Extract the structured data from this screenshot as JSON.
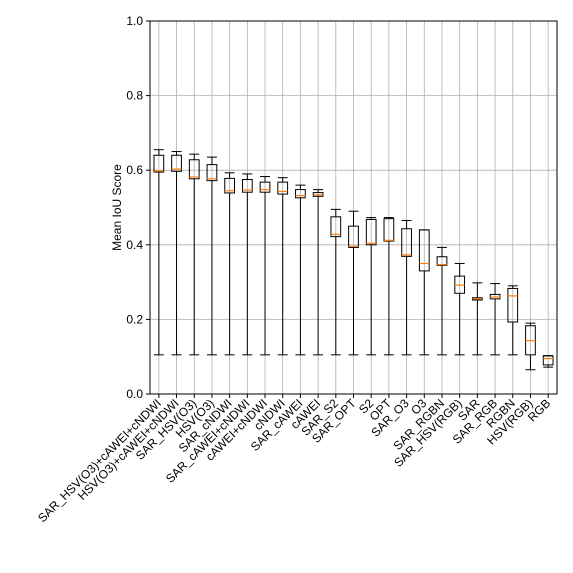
{
  "chart_data": {
    "type": "box",
    "title": "",
    "xlabel": "",
    "ylabel": "Mean IoU Score",
    "ylim": [
      0.0,
      1.0
    ],
    "yticks": [
      0.0,
      0.2,
      0.4,
      0.6,
      0.8,
      1.0
    ],
    "ytick_labels": [
      "0.0",
      "0.2",
      "0.4",
      "0.6",
      "0.8",
      "1.0"
    ],
    "grid": true,
    "colors": {
      "box": "#000000",
      "median": "#ff7f0e",
      "grid": "#b0b0b0"
    },
    "categories": [
      "SAR_HSV(O3)+cAWEI+cNDWI",
      "HSV(O3)+cAWEI+cNDWI",
      "SAR_HSV(O3)",
      "HSV(O3)",
      "SAR_cNDWI",
      "SAR_cAWEI+cNDWI",
      "cAWEI+cNDWI",
      "cNDWI",
      "SAR_cAWEI",
      "cAWEI",
      "SAR_S2",
      "SAR_OPT",
      "S2",
      "OPT",
      "SAR_O3",
      "O3",
      "SAR_RGBN",
      "SAR_HSV(RGB)",
      "SAR",
      "SAR_RGB",
      "RGBN",
      "HSV(RGB)",
      "RGB"
    ],
    "boxes": [
      {
        "whislo": 0.105,
        "q1": 0.595,
        "med": 0.598,
        "q3": 0.64,
        "whishi": 0.655
      },
      {
        "whislo": 0.105,
        "q1": 0.597,
        "med": 0.603,
        "q3": 0.64,
        "whishi": 0.65
      },
      {
        "whislo": 0.105,
        "q1": 0.577,
        "med": 0.582,
        "q3": 0.628,
        "whishi": 0.643
      },
      {
        "whislo": 0.105,
        "q1": 0.572,
        "med": 0.577,
        "q3": 0.615,
        "whishi": 0.635
      },
      {
        "whislo": 0.105,
        "q1": 0.539,
        "med": 0.545,
        "q3": 0.578,
        "whishi": 0.593
      },
      {
        "whislo": 0.105,
        "q1": 0.541,
        "med": 0.547,
        "q3": 0.575,
        "whishi": 0.59
      },
      {
        "whislo": 0.105,
        "q1": 0.541,
        "med": 0.548,
        "q3": 0.568,
        "whishi": 0.583
      },
      {
        "whislo": 0.105,
        "q1": 0.536,
        "med": 0.543,
        "q3": 0.568,
        "whishi": 0.58
      },
      {
        "whislo": 0.105,
        "q1": 0.526,
        "med": 0.532,
        "q3": 0.548,
        "whishi": 0.56
      },
      {
        "whislo": 0.105,
        "q1": 0.53,
        "med": 0.534,
        "q3": 0.54,
        "whishi": 0.548
      },
      {
        "whislo": 0.105,
        "q1": 0.422,
        "med": 0.428,
        "q3": 0.475,
        "whishi": 0.495
      },
      {
        "whislo": 0.105,
        "q1": 0.393,
        "med": 0.396,
        "q3": 0.45,
        "whishi": 0.49
      },
      {
        "whislo": 0.105,
        "q1": 0.4,
        "med": 0.404,
        "q3": 0.468,
        "whishi": 0.473
      },
      {
        "whislo": 0.105,
        "q1": 0.41,
        "med": 0.412,
        "q3": 0.47,
        "whishi": 0.473
      },
      {
        "whislo": 0.105,
        "q1": 0.369,
        "med": 0.373,
        "q3": 0.443,
        "whishi": 0.465
      },
      {
        "whislo": 0.105,
        "q1": 0.33,
        "med": 0.35,
        "q3": 0.44,
        "whishi": 0.44
      },
      {
        "whislo": 0.105,
        "q1": 0.345,
        "med": 0.347,
        "q3": 0.368,
        "whishi": 0.393
      },
      {
        "whislo": 0.105,
        "q1": 0.27,
        "med": 0.292,
        "q3": 0.316,
        "whishi": 0.35
      },
      {
        "whislo": 0.105,
        "q1": 0.252,
        "med": 0.255,
        "q3": 0.258,
        "whishi": 0.298
      },
      {
        "whislo": 0.105,
        "q1": 0.255,
        "med": 0.26,
        "q3": 0.267,
        "whishi": 0.296
      },
      {
        "whislo": 0.105,
        "q1": 0.193,
        "med": 0.263,
        "q3": 0.283,
        "whishi": 0.29
      },
      {
        "whislo": 0.065,
        "q1": 0.105,
        "med": 0.143,
        "q3": 0.183,
        "whishi": 0.19
      },
      {
        "whislo": 0.072,
        "q1": 0.078,
        "med": 0.095,
        "q3": 0.102,
        "whishi": 0.103
      }
    ]
  }
}
